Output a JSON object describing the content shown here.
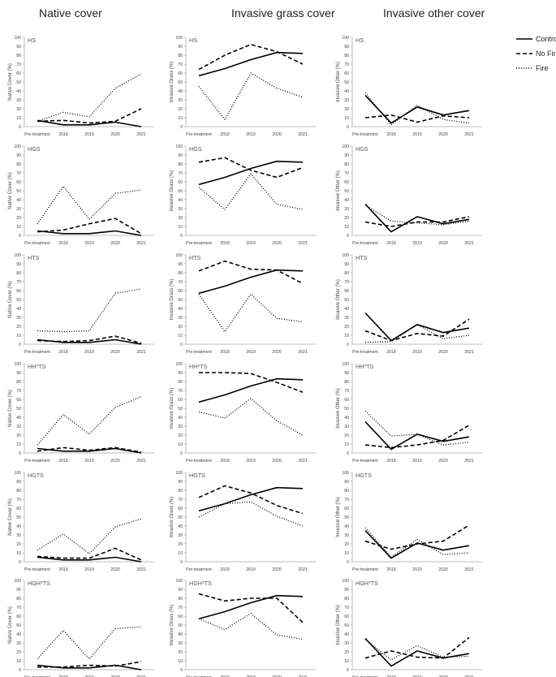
{
  "column_titles": [
    "Native cover",
    "Invasive grass cover",
    "Invasive other cover"
  ],
  "row_titles": [
    "HS",
    "HGS",
    "HTS",
    "HH*TS",
    "HGTS",
    "HGH*TS"
  ],
  "legend": {
    "items": [
      {
        "label": "Control",
        "style": "solid"
      },
      {
        "label": "No Fire",
        "style": "dashed"
      },
      {
        "label": "Fire",
        "style": "dotted"
      }
    ]
  },
  "chart_data": [
    {
      "type": "line",
      "panel": "HS",
      "column": "Native cover",
      "ylabel": "Native Cover (%)",
      "categories": [
        "Pre-treatment",
        "2018",
        "2019",
        "2020",
        "2021"
      ],
      "ylim": [
        0,
        100
      ],
      "yticks": [
        0,
        10,
        20,
        30,
        40,
        50,
        60,
        70,
        80,
        90,
        100
      ],
      "series": [
        {
          "name": "Control",
          "values": [
            7,
            2,
            2,
            5,
            0
          ]
        },
        {
          "name": "No Fire",
          "values": [
            6,
            7,
            4,
            6,
            20
          ]
        },
        {
          "name": "Fire",
          "values": [
            6,
            16,
            11,
            43,
            59
          ]
        }
      ]
    },
    {
      "type": "line",
      "panel": "HS",
      "column": "Invasive grass cover",
      "ylabel": "Invasive Grass (%)",
      "categories": [
        "Pre-treatment",
        "2018",
        "2019",
        "2020",
        "2021"
      ],
      "ylim": [
        0,
        100
      ],
      "yticks": [
        0,
        10,
        20,
        30,
        40,
        50,
        60,
        70,
        80,
        90,
        100
      ],
      "series": [
        {
          "name": "Control",
          "values": [
            57,
            65,
            75,
            83,
            82
          ]
        },
        {
          "name": "No Fire",
          "values": [
            64,
            80,
            92,
            84,
            70
          ]
        },
        {
          "name": "Fire",
          "values": [
            45,
            8,
            60,
            43,
            33
          ]
        }
      ]
    },
    {
      "type": "line",
      "panel": "HS",
      "column": "Invasive other cover",
      "ylabel": "Invasive Other (%)",
      "categories": [
        "Pre-treatment",
        "2018",
        "2019",
        "2020",
        "2021"
      ],
      "ylim": [
        0,
        100
      ],
      "yticks": [
        0,
        10,
        20,
        30,
        40,
        50,
        60,
        70,
        80,
        90,
        100
      ],
      "series": [
        {
          "name": "Control",
          "values": [
            35,
            4,
            22,
            13,
            18
          ]
        },
        {
          "name": "No Fire",
          "values": [
            10,
            13,
            5,
            12,
            10
          ]
        },
        {
          "name": "Fire",
          "values": [
            38,
            2,
            24,
            8,
            4
          ]
        }
      ]
    },
    {
      "type": "line",
      "panel": "HGS",
      "column": "Native cover",
      "ylabel": "Native Cover (%)",
      "categories": [
        "Pre-treatment",
        "2018",
        "2019",
        "2020",
        "2021"
      ],
      "ylim": [
        0,
        100
      ],
      "yticks": [
        0,
        10,
        20,
        30,
        40,
        50,
        60,
        70,
        80,
        90,
        100
      ],
      "series": [
        {
          "name": "Control",
          "values": [
            5,
            2,
            2,
            5,
            0
          ]
        },
        {
          "name": "No Fire",
          "values": [
            4,
            6,
            13,
            19,
            2
          ]
        },
        {
          "name": "Fire",
          "values": [
            13,
            55,
            18,
            47,
            51
          ]
        }
      ]
    },
    {
      "type": "line",
      "panel": "HGS",
      "column": "Invasive grass cover",
      "ylabel": "Invasive Grass (%)",
      "categories": [
        "Pre-treatment",
        "2018",
        "2019",
        "2020",
        "2021"
      ],
      "ylim": [
        0,
        100
      ],
      "yticks": [
        0,
        10,
        20,
        30,
        40,
        50,
        60,
        70,
        80,
        90,
        100
      ],
      "series": [
        {
          "name": "Control",
          "values": [
            57,
            65,
            75,
            83,
            82
          ]
        },
        {
          "name": "No Fire",
          "values": [
            82,
            87,
            73,
            65,
            76
          ]
        },
        {
          "name": "Fire",
          "values": [
            54,
            29,
            69,
            35,
            29
          ]
        }
      ]
    },
    {
      "type": "line",
      "panel": "HGS",
      "column": "Invasive other cover",
      "ylabel": "Invasive Other (%)",
      "categories": [
        "Pre-treatment",
        "2018",
        "2019",
        "2020",
        "2021"
      ],
      "ylim": [
        0,
        100
      ],
      "yticks": [
        0,
        10,
        20,
        30,
        40,
        50,
        60,
        70,
        80,
        90,
        100
      ],
      "series": [
        {
          "name": "Control",
          "values": [
            35,
            4,
            21,
            13,
            18
          ]
        },
        {
          "name": "No Fire",
          "values": [
            15,
            10,
            15,
            15,
            21
          ]
        },
        {
          "name": "Fire",
          "values": [
            34,
            16,
            14,
            12,
            16
          ]
        }
      ]
    },
    {
      "type": "line",
      "panel": "HTS",
      "column": "Native cover",
      "ylabel": "Native Cover (%)",
      "categories": [
        "Pre-treatment",
        "2018",
        "2019",
        "2020",
        "2021"
      ],
      "ylim": [
        0,
        100
      ],
      "yticks": [
        0,
        10,
        20,
        30,
        40,
        50,
        60,
        70,
        80,
        90,
        100
      ],
      "series": [
        {
          "name": "Control",
          "values": [
            5,
            2,
            2,
            5,
            0
          ]
        },
        {
          "name": "No Fire",
          "values": [
            4,
            3,
            4,
            9,
            1
          ]
        },
        {
          "name": "Fire",
          "values": [
            15,
            14,
            15,
            57,
            62
          ]
        }
      ]
    },
    {
      "type": "line",
      "panel": "HTS",
      "column": "Invasive grass cover",
      "ylabel": "Invasive Grass (%)",
      "categories": [
        "Pre-treatment",
        "2018",
        "2019",
        "2020",
        "2021"
      ],
      "ylim": [
        0,
        100
      ],
      "yticks": [
        0,
        10,
        20,
        30,
        40,
        50,
        60,
        70,
        80,
        90,
        100
      ],
      "series": [
        {
          "name": "Control",
          "values": [
            57,
            65,
            75,
            83,
            82
          ]
        },
        {
          "name": "No Fire",
          "values": [
            82,
            93,
            84,
            83,
            68
          ]
        },
        {
          "name": "Fire",
          "values": [
            56,
            14,
            56,
            29,
            25
          ]
        }
      ]
    },
    {
      "type": "line",
      "panel": "HTS",
      "column": "Invasive other cover",
      "ylabel": "Invasive Other (%)",
      "categories": [
        "Pre-treatment",
        "2018",
        "2019",
        "2020",
        "2021"
      ],
      "ylim": [
        0,
        100
      ],
      "yticks": [
        0,
        10,
        20,
        30,
        40,
        50,
        60,
        70,
        80,
        90,
        100
      ],
      "series": [
        {
          "name": "Control",
          "values": [
            35,
            4,
            22,
            13,
            18
          ]
        },
        {
          "name": "No Fire",
          "values": [
            15,
            4,
            12,
            9,
            28
          ]
        },
        {
          "name": "Fire",
          "values": [
            2,
            3,
            22,
            6,
            10
          ]
        }
      ]
    },
    {
      "type": "line",
      "panel": "HH*TS",
      "column": "Native cover",
      "ylabel": "Native Cover (%)",
      "categories": [
        "Pre-treatment",
        "2018",
        "2019",
        "2020",
        "2021"
      ],
      "ylim": [
        0,
        100
      ],
      "yticks": [
        0,
        10,
        20,
        30,
        40,
        50,
        60,
        70,
        80,
        90,
        100
      ],
      "series": [
        {
          "name": "Control",
          "values": [
            5,
            2,
            2,
            5,
            0
          ]
        },
        {
          "name": "No Fire",
          "values": [
            2,
            6,
            3,
            6,
            1
          ]
        },
        {
          "name": "Fire",
          "values": [
            9,
            43,
            21,
            51,
            63
          ]
        }
      ]
    },
    {
      "type": "line",
      "panel": "HH*TS",
      "column": "Invasive grass cover",
      "ylabel": "Invasive Grass (%)",
      "categories": [
        "Pre-treatment",
        "2018",
        "2019",
        "2020",
        "2021"
      ],
      "ylim": [
        0,
        100
      ],
      "yticks": [
        0,
        10,
        20,
        30,
        40,
        50,
        60,
        70,
        80,
        90,
        100
      ],
      "series": [
        {
          "name": "Control",
          "values": [
            57,
            65,
            75,
            83,
            82
          ]
        },
        {
          "name": "No Fire",
          "values": [
            90,
            90,
            89,
            79,
            68
          ]
        },
        {
          "name": "Fire",
          "values": [
            46,
            39,
            61,
            36,
            20
          ]
        }
      ]
    },
    {
      "type": "line",
      "panel": "HH*TS",
      "column": "Invasive other cover",
      "ylabel": "Invasive Other (%)",
      "categories": [
        "Pre-treatment",
        "2018",
        "2019",
        "2020",
        "2021"
      ],
      "ylim": [
        0,
        100
      ],
      "yticks": [
        0,
        10,
        20,
        30,
        40,
        50,
        60,
        70,
        80,
        90,
        100
      ],
      "series": [
        {
          "name": "Control",
          "values": [
            35,
            4,
            21,
            13,
            18
          ]
        },
        {
          "name": "No Fire",
          "values": [
            9,
            6,
            9,
            14,
            31
          ]
        },
        {
          "name": "Fire",
          "values": [
            47,
            19,
            21,
            9,
            12
          ]
        }
      ]
    },
    {
      "type": "line",
      "panel": "HGTS",
      "column": "Native cover",
      "ylabel": "Native Cover (%)",
      "categories": [
        "Pre-treatment",
        "2018",
        "2019",
        "2020",
        "2021"
      ],
      "ylim": [
        0,
        100
      ],
      "yticks": [
        0,
        10,
        20,
        30,
        40,
        50,
        60,
        70,
        80,
        90,
        100
      ],
      "series": [
        {
          "name": "Control",
          "values": [
            5,
            2,
            2,
            5,
            0
          ]
        },
        {
          "name": "No Fire",
          "values": [
            6,
            4,
            4,
            15,
            2
          ]
        },
        {
          "name": "Fire",
          "values": [
            13,
            31,
            9,
            39,
            48
          ]
        }
      ]
    },
    {
      "type": "line",
      "panel": "HGTS",
      "column": "Invasive grass cover",
      "ylabel": "Invasive Grass (%)",
      "categories": [
        "Pre-treatment",
        "2018",
        "2019",
        "2020",
        "2021"
      ],
      "ylim": [
        0,
        100
      ],
      "yticks": [
        0,
        10,
        20,
        30,
        40,
        50,
        60,
        70,
        80,
        90,
        100
      ],
      "series": [
        {
          "name": "Control",
          "values": [
            57,
            65,
            75,
            83,
            82
          ]
        },
        {
          "name": "No Fire",
          "values": [
            72,
            85,
            77,
            63,
            54
          ]
        },
        {
          "name": "Fire",
          "values": [
            50,
            65,
            67,
            51,
            40
          ]
        }
      ]
    },
    {
      "type": "line",
      "panel": "HGTS",
      "column": "Invasive other cover",
      "ylabel": "Invasive Other (%)",
      "categories": [
        "Pre-treatment",
        "2018",
        "2019",
        "2020",
        "2021"
      ],
      "ylim": [
        0,
        100
      ],
      "yticks": [
        0,
        10,
        20,
        30,
        40,
        50,
        60,
        70,
        80,
        90,
        100
      ],
      "series": [
        {
          "name": "Control",
          "values": [
            35,
            4,
            21,
            13,
            18
          ]
        },
        {
          "name": "No Fire",
          "values": [
            23,
            14,
            20,
            23,
            41
          ]
        },
        {
          "name": "Fire",
          "values": [
            38,
            5,
            25,
            8,
            10
          ]
        }
      ]
    },
    {
      "type": "line",
      "panel": "HGH*TS",
      "column": "Native cover",
      "ylabel": "Native Cover (%)",
      "categories": [
        "Pre-treatment",
        "2018",
        "2019",
        "2020",
        "2021"
      ],
      "ylim": [
        0,
        100
      ],
      "yticks": [
        0,
        10,
        20,
        30,
        40,
        50,
        60,
        70,
        80,
        90,
        100
      ],
      "series": [
        {
          "name": "Control",
          "values": [
            5,
            2,
            2,
            5,
            0
          ]
        },
        {
          "name": "No Fire",
          "values": [
            3,
            3,
            5,
            4,
            9
          ]
        },
        {
          "name": "Fire",
          "values": [
            12,
            44,
            12,
            46,
            48
          ]
        }
      ]
    },
    {
      "type": "line",
      "panel": "HGH*TS",
      "column": "Invasive grass cover",
      "ylabel": "Invasive Grass (%)",
      "categories": [
        "Pre-treatment",
        "2018",
        "2019",
        "2020",
        "2021"
      ],
      "ylim": [
        0,
        100
      ],
      "yticks": [
        0,
        10,
        20,
        30,
        40,
        50,
        60,
        70,
        80,
        90,
        100
      ],
      "series": [
        {
          "name": "Control",
          "values": [
            57,
            65,
            75,
            83,
            82
          ]
        },
        {
          "name": "No Fire",
          "values": [
            85,
            77,
            80,
            80,
            53
          ]
        },
        {
          "name": "Fire",
          "values": [
            57,
            45,
            63,
            39,
            34
          ]
        }
      ]
    },
    {
      "type": "line",
      "panel": "HGH*TS",
      "column": "Invasive other cover",
      "ylabel": "Invasive Other (%)",
      "categories": [
        "Pre-treatment",
        "2018",
        "2019",
        "2020",
        "2021"
      ],
      "ylim": [
        0,
        100
      ],
      "yticks": [
        0,
        10,
        20,
        30,
        40,
        50,
        60,
        70,
        80,
        90,
        100
      ],
      "series": [
        {
          "name": "Control",
          "values": [
            35,
            4,
            21,
            13,
            18
          ]
        },
        {
          "name": "No Fire",
          "values": [
            13,
            21,
            14,
            13,
            36
          ]
        },
        {
          "name": "Fire",
          "values": [
            34,
            11,
            27,
            14,
            15
          ]
        }
      ]
    }
  ]
}
